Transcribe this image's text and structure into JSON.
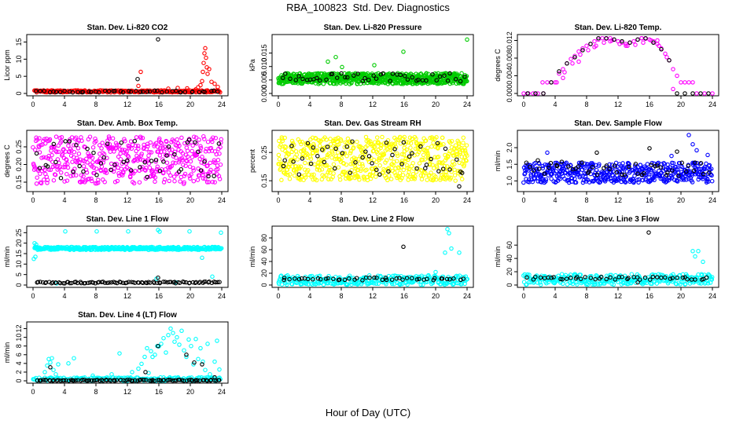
{
  "figure": {
    "title": "RBA_100823  Std. Dev. Diagnostics",
    "xlabel": "Hour of Day (UTC)"
  },
  "chart_data": [
    {
      "type": "scatter",
      "title": "Stan. Dev. Li-820 CO2",
      "ylabel": "Licor ppm",
      "xlim": [
        0,
        24
      ],
      "xticks": [
        "0",
        "4",
        "8",
        "12",
        "16",
        "20",
        "24"
      ],
      "ylim": [
        0,
        16.5
      ],
      "yticks": [
        "0",
        "5",
        "10",
        "15"
      ],
      "series": [
        {
          "color": "#ff0000",
          "cloud": {
            "base": 0.3,
            "spread": 0.6,
            "start": 0.2,
            "end": 23.8,
            "step": 0.09
          },
          "x": [
            13.4,
            13.7,
            17.2,
            18.4,
            19.6,
            20.7,
            21.0,
            21.3,
            21.5,
            21.6,
            21.7,
            21.8,
            21.9,
            22.0,
            22.1,
            22.2,
            22.4,
            22.7,
            23.1,
            23.5
          ],
          "y": [
            2.2,
            6.3,
            1.4,
            1.6,
            1.5,
            1.2,
            1.8,
            2.4,
            3.6,
            6.3,
            8.9,
            11.7,
            13.2,
            10.4,
            7.6,
            5.7,
            7.1,
            3.4,
            2.8,
            1.9
          ]
        },
        {
          "color": "#000000",
          "cloud": {
            "base": 0.3,
            "spread": 0.5,
            "start": 0.5,
            "end": 23.9,
            "step": 0.5
          },
          "x": [
            13.3,
            15.9
          ],
          "y": [
            4.2,
            15.8
          ]
        }
      ]
    },
    {
      "type": "scatter",
      "title": "Stan. Dev. Li-820 Pressure",
      "ylabel": "kPa",
      "xlim": [
        0,
        24
      ],
      "xticks": [
        "0",
        "4",
        "8",
        "12",
        "16",
        "20",
        "24"
      ],
      "ylim": [
        0,
        0.021
      ],
      "yticks": [
        "0.000",
        "0.005",
        "0.010",
        "0.015"
      ],
      "series": [
        {
          "color": "#00cc00",
          "cloud": {
            "base": 0.0035,
            "spread": 0.004,
            "start": 0.0,
            "end": 24.0,
            "step": 0.035
          },
          "x": [
            6.3,
            7.3,
            8.1,
            12.2,
            15.9,
            24.0
          ],
          "y": [
            0.0118,
            0.0135,
            0.0098,
            0.0105,
            0.0155,
            0.02
          ]
        },
        {
          "color": "#000000",
          "cloud": {
            "base": 0.0045,
            "spread": 0.003,
            "start": 0.5,
            "end": 23.9,
            "step": 0.5
          },
          "x": [],
          "y": []
        }
      ]
    },
    {
      "type": "scatter",
      "title": "Stan. Dev. Li-820 Temp.",
      "ylabel": "degrees C",
      "xlim": [
        0,
        24
      ],
      "xticks": [
        "0",
        "4",
        "8",
        "12",
        "16",
        "20",
        "24"
      ],
      "ylim": [
        0,
        0.0128
      ],
      "yticks": [
        "0.000",
        "0.004",
        "0.008",
        "0.012"
      ],
      "series": [
        {
          "color": "#ff00ff",
          "x": [
            0.0,
            0.6,
            1.2,
            1.8,
            2.4,
            2.5,
            3.0,
            3.5,
            4.0,
            4.5,
            5.0,
            5.5,
            6.0,
            6.5,
            7.0,
            7.5,
            8.0,
            8.5,
            9.0,
            9.5,
            10.0,
            10.5,
            11.0,
            11.5,
            12.0,
            12.5,
            13.0,
            13.5,
            14.0,
            14.5,
            15.0,
            15.5,
            16.0,
            16.5,
            17.0,
            17.5,
            18.0,
            18.5,
            19.0,
            19.5,
            20.0,
            20.5,
            21.0,
            21.5,
            22.0,
            23.0,
            24.0,
            4.2,
            5.2,
            6.2,
            7.2,
            8.2,
            9.2,
            10.2,
            11.2,
            12.2,
            13.2,
            14.2,
            15.2,
            16.2,
            17.2,
            18.2,
            5.0,
            7.0,
            9.0,
            11.0,
            13.0,
            15.0,
            17.0,
            19.0
          ],
          "y": [
            0.0,
            0.0,
            0.0,
            0.0,
            0.0025,
            0.0,
            0.0025,
            0.0025,
            0.0025,
            0.0045,
            0.0055,
            0.0068,
            0.0078,
            0.0085,
            0.0095,
            0.0102,
            0.0108,
            0.0112,
            0.0118,
            0.0122,
            0.0125,
            0.0124,
            0.0125,
            0.0122,
            0.0118,
            0.0115,
            0.0112,
            0.0115,
            0.0118,
            0.0122,
            0.0125,
            0.0124,
            0.0122,
            0.0118,
            0.0112,
            0.0102,
            0.009,
            0.0075,
            0.0055,
            0.004,
            0.0025,
            0.0025,
            0.0025,
            0.0025,
            0.0,
            0.0,
            0.0,
            0.0025,
            0.0048,
            0.0068,
            0.0088,
            0.0098,
            0.0108,
            0.0115,
            0.012,
            0.0112,
            0.0108,
            0.011,
            0.0115,
            0.012,
            0.0108,
            0.0082,
            0.0035,
            0.0072,
            0.0105,
            0.0118,
            0.0108,
            0.0125,
            0.012,
            0.001
          ]
        },
        {
          "color": "#000000",
          "x": [
            0.5,
            1.5,
            2.5,
            3.5,
            4.5,
            5.5,
            6.5,
            7.5,
            8.5,
            9.5,
            10.5,
            11.5,
            12.5,
            13.5,
            14.5,
            15.5,
            16.5,
            17.5,
            18.5,
            19.5,
            20.5,
            21.5,
            22.5,
            23.5
          ],
          "y": [
            0.0,
            0.0,
            0.0,
            0.0025,
            0.005,
            0.0068,
            0.0082,
            0.0098,
            0.0112,
            0.0125,
            0.0125,
            0.0122,
            0.0118,
            0.0115,
            0.0122,
            0.0125,
            0.0115,
            0.01,
            0.0075,
            0.0,
            0.0,
            0.0,
            0.0,
            0.0
          ]
        }
      ]
    },
    {
      "type": "scatter",
      "title": "Stan. Dev. Amb. Box Temp.",
      "ylabel": "degrees C",
      "xlim": [
        0,
        24
      ],
      "xticks": [
        "0",
        "4",
        "8",
        "12",
        "16",
        "20",
        "24"
      ],
      "ylim": [
        0.13,
        0.29
      ],
      "yticks": [
        "0.15",
        "0.20",
        "0.25"
      ],
      "series": [
        {
          "color": "#ff00ff",
          "cloud": {
            "base": 0.145,
            "spread": 0.135,
            "start": 0.0,
            "end": 24.0,
            "step": 0.05
          },
          "x": [],
          "y": []
        },
        {
          "color": "#000000",
          "cloud": {
            "base": 0.16,
            "spread": 0.11,
            "start": 0.5,
            "end": 23.9,
            "step": 0.5
          },
          "x": [],
          "y": []
        }
      ]
    },
    {
      "type": "scatter",
      "title": "Stan. Dev. Gas Stream RH",
      "ylabel": "percent",
      "xlim": [
        0,
        24
      ],
      "xticks": [
        "0",
        "4",
        "8",
        "12",
        "16",
        "20",
        "24"
      ],
      "ylim": [
        0.12,
        0.32
      ],
      "yticks": [
        "0.15",
        "0.25"
      ],
      "series": [
        {
          "color": "#ffff00",
          "cloud": {
            "base": 0.15,
            "spread": 0.155,
            "start": 0.0,
            "end": 24.0,
            "step": 0.04
          },
          "x": [],
          "y": []
        },
        {
          "color": "#000000",
          "cloud": {
            "base": 0.17,
            "spread": 0.12,
            "start": 0.5,
            "end": 23.9,
            "step": 0.5
          },
          "x": [
            23.0
          ],
          "y": [
            0.13
          ]
        }
      ]
    },
    {
      "type": "scatter",
      "title": "Stan. Dev. Sample Flow",
      "ylabel": "ml/min",
      "xlim": [
        0,
        24
      ],
      "xticks": [
        "0",
        "4",
        "8",
        "12",
        "16",
        "20",
        "24"
      ],
      "ylim": [
        0.75,
        2.45
      ],
      "yticks": [
        "1.0",
        "1.5",
        "2.0"
      ],
      "series": [
        {
          "color": "#0000ff",
          "cloud": {
            "base": 0.95,
            "spread": 0.6,
            "start": 0.0,
            "end": 24.0,
            "step": 0.05
          },
          "x": [
            3.0,
            18.8,
            21.0,
            21.5,
            22.0,
            23.4
          ],
          "y": [
            1.85,
            1.75,
            2.38,
            2.1,
            1.92,
            1.78
          ]
        },
        {
          "color": "#000000",
          "cloud": {
            "base": 1.15,
            "spread": 0.45,
            "start": 0.5,
            "end": 23.9,
            "step": 0.5
          },
          "x": [
            1.8,
            9.3,
            16.0,
            19.5
          ],
          "y": [
            1.62,
            1.85,
            1.98,
            1.88
          ]
        }
      ]
    },
    {
      "type": "scatter",
      "title": "Stan. Dev. Line 1 Flow",
      "ylabel": "ml/min",
      "xlim": [
        0,
        24
      ],
      "xticks": [
        "0",
        "4",
        "8",
        "12",
        "16",
        "20",
        "24"
      ],
      "ylim": [
        0,
        27
      ],
      "yticks": [
        "0",
        "5",
        "10",
        "15",
        "20",
        "25"
      ],
      "series": [
        {
          "color": "#00ffff",
          "cloud": {
            "base": 16.8,
            "spread": 1.4,
            "start": 0.2,
            "end": 24.0,
            "step": 0.06
          },
          "x": [
            0.1,
            0.2,
            0.3,
            0.4,
            4.1,
            8.1,
            12.1,
            15.9,
            16.1,
            19.9,
            23.9,
            15.7,
            21.5,
            22.8,
            3.0,
            18.2
          ],
          "y": [
            12.5,
            20.0,
            13.5,
            19.3,
            25.6,
            25.6,
            25.6,
            26.3,
            25.5,
            25.6,
            25.0,
            3.0,
            13.0,
            4.0,
            0.8,
            1.2
          ]
        },
        {
          "color": "#000000",
          "cloud": {
            "base": 0.8,
            "spread": 0.8,
            "start": 0.5,
            "end": 23.9,
            "step": 0.25
          },
          "x": [
            15.9
          ],
          "y": [
            3.5
          ]
        }
      ]
    },
    {
      "type": "scatter",
      "title": "Stan. Dev. Line 2 Flow",
      "ylabel": "ml/min",
      "xlim": [
        0,
        24
      ],
      "xticks": [
        "0",
        "4",
        "8",
        "12",
        "16",
        "20",
        "24"
      ],
      "ylim": [
        0,
        96
      ],
      "yticks": [
        "0",
        "20",
        "40",
        "60",
        "80"
      ],
      "series": [
        {
          "color": "#00ffff",
          "cloud": {
            "base": 0.5,
            "spread": 16.0,
            "start": 0.0,
            "end": 24.0,
            "step": 0.08
          },
          "x": [
            21.5,
            21.7,
            22.0,
            23.0,
            21.2,
            20.0
          ],
          "y": [
            95,
            88,
            62,
            55,
            55,
            22
          ]
        },
        {
          "color": "#000000",
          "cloud": {
            "base": 8.0,
            "spread": 4.5,
            "start": 0.5,
            "end": 23.9,
            "step": 0.5
          },
          "x": [
            15.9
          ],
          "y": [
            65
          ]
        }
      ]
    },
    {
      "type": "scatter",
      "title": "Stan. Dev. Line 3 Flow",
      "ylabel": "ml/min",
      "xlim": [
        0,
        24
      ],
      "xticks": [
        "0",
        "4",
        "8",
        "12",
        "16",
        "20",
        "24"
      ],
      "ylim": [
        0,
        85
      ],
      "yticks": [
        "0",
        "20",
        "40",
        "60"
      ],
      "series": [
        {
          "color": "#00ffff",
          "cloud": {
            "base": 0.5,
            "spread": 16.0,
            "start": 0.0,
            "end": 24.0,
            "step": 0.08
          },
          "x": [
            21.5,
            21.8,
            22.2,
            22.8,
            23.5
          ],
          "y": [
            51,
            43,
            51,
            35,
            16
          ]
        },
        {
          "color": "#000000",
          "cloud": {
            "base": 8.0,
            "spread": 4.5,
            "start": 0.5,
            "end": 23.9,
            "step": 0.5
          },
          "x": [
            15.9,
            14.5
          ],
          "y": [
            79,
            4
          ]
        }
      ]
    },
    {
      "type": "scatter",
      "title": "Stan. Dev. Line 4 (LT) Flow",
      "ylabel": "ml/min",
      "xlim": [
        0,
        24
      ],
      "xticks": [
        "0",
        "4",
        "8",
        "12",
        "16",
        "20",
        "24"
      ],
      "ylim": [
        0,
        13
      ],
      "yticks": [
        "0",
        "2",
        "4",
        "6",
        "8",
        "10",
        "12"
      ],
      "series": [
        {
          "color": "#00ffff",
          "cloud": {
            "base": 0.0,
            "spread": 0.8,
            "start": 0.0,
            "end": 24.0,
            "step": 0.12
          },
          "x": [
            1.5,
            1.8,
            2.0,
            2.2,
            2.4,
            2.6,
            2.9,
            3.2,
            4.5,
            5.2,
            6.1,
            7.6,
            10.0,
            11.0,
            12.6,
            13.4,
            13.8,
            14.2,
            14.5,
            14.7,
            15.0,
            15.2,
            15.5,
            15.8,
            16.0,
            16.3,
            16.6,
            16.9,
            17.2,
            17.5,
            17.8,
            18.0,
            18.3,
            18.6,
            18.9,
            19.2,
            19.5,
            19.8,
            20.1,
            20.4,
            20.7,
            21.0,
            21.3,
            21.6,
            21.9,
            22.2,
            22.5,
            22.8,
            23.1,
            23.4,
            23.7
          ],
          "y": [
            2.0,
            3.5,
            5.0,
            4.2,
            5.2,
            2.5,
            1.5,
            3.8,
            4.0,
            5.2,
            0.6,
            1.2,
            1.5,
            6.3,
            2.0,
            2.8,
            3.9,
            5.5,
            7.5,
            1.8,
            6.8,
            5.5,
            6.0,
            8.0,
            7.9,
            8.5,
            9.8,
            6.5,
            10.5,
            12.0,
            11.0,
            9.0,
            10.0,
            8.3,
            11.5,
            7.0,
            5.5,
            9.5,
            8.0,
            3.8,
            9.6,
            5.0,
            7.5,
            4.4,
            2.5,
            8.5,
            1.5,
            0.7,
            4.4,
            9.2,
            2.6
          ]
        },
        {
          "color": "#000000",
          "cloud": {
            "base": 0.0,
            "spread": 0.25,
            "start": 0.5,
            "end": 23.9,
            "step": 0.25
          },
          "x": [
            2.2,
            14.3,
            15.9,
            19.5,
            20.5,
            21.5,
            23.1
          ],
          "y": [
            3.1,
            2.0,
            8.0,
            6.0,
            4.2,
            3.8,
            0.8
          ]
        }
      ]
    }
  ]
}
